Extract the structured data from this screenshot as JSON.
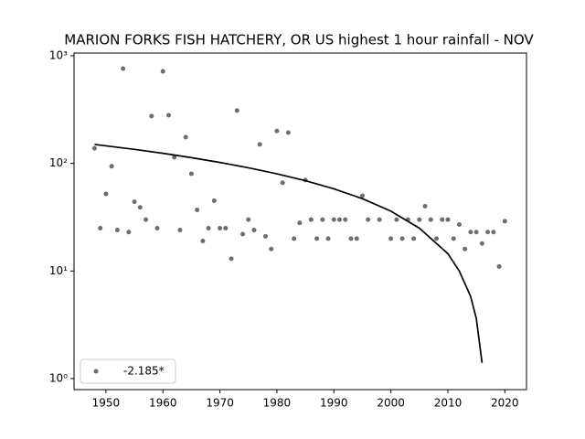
{
  "chart_data": {
    "type": "scatter",
    "title": "MARION FORKS FISH HATCHERY, OR US highest 1 hour rainfall - NOV",
    "log_y": true,
    "xlim": [
      1944.4,
      2023.8
    ],
    "ylim": [
      0.79,
      1060
    ],
    "xticks": [
      1950,
      1960,
      1970,
      1980,
      1990,
      2000,
      2010,
      2020
    ],
    "yticks": [
      {
        "value": 1,
        "label": "10⁰"
      },
      {
        "value": 10,
        "label": "10¹"
      },
      {
        "value": 100,
        "label": "10²"
      },
      {
        "value": 1000,
        "label": "10³"
      }
    ],
    "legend": "lower left",
    "series": [
      {
        "name": "-2.185*",
        "type": "scatter",
        "color": "#555555",
        "x": [
          1948,
          1949,
          1950,
          1951,
          1952,
          1953,
          1954,
          1955,
          1956,
          1957,
          1958,
          1959,
          1960,
          1961,
          1962,
          1963,
          1964,
          1965,
          1966,
          1967,
          1968,
          1969,
          1970,
          1971,
          1972,
          1973,
          1974,
          1975,
          1976,
          1977,
          1978,
          1979,
          1980,
          1981,
          1982,
          1983,
          1984,
          1985,
          1986,
          1987,
          1988,
          1989,
          1990,
          1991,
          1992,
          1993,
          1994,
          1995,
          1996,
          1998,
          2000,
          2001,
          2002,
          2003,
          2004,
          2005,
          2006,
          2007,
          2008,
          2009,
          2010,
          2011,
          2012,
          2013,
          2014,
          2015,
          2016,
          2017,
          2018,
          2019,
          2020
        ],
        "values": [
          138,
          25,
          52,
          94,
          24,
          760,
          23,
          44,
          39,
          30,
          275,
          25,
          716,
          280,
          114,
          24,
          175,
          80,
          37,
          19,
          25,
          45,
          25,
          25,
          13,
          310,
          22,
          30,
          24,
          150,
          21,
          16,
          200,
          66,
          193,
          20,
          28,
          70,
          30,
          20,
          30,
          20,
          30,
          30,
          30,
          20,
          20,
          50,
          30,
          30,
          20,
          30,
          20,
          30,
          20,
          30,
          40,
          30,
          20,
          30,
          30,
          20,
          27,
          16,
          23,
          23,
          18,
          23,
          23,
          11,
          29
        ]
      },
      {
        "type": "line",
        "color": "#000000",
        "x": [
          1948,
          1955,
          1960,
          1965,
          1970,
          1975,
          1980,
          1985,
          1990,
          1995,
          2000,
          2005,
          2010,
          2012,
          2014,
          2015,
          2016
        ],
        "values": [
          150,
          135,
          124,
          113,
          102,
          91,
          80,
          69,
          58,
          47,
          36,
          25,
          14.5,
          10,
          5.8,
          3.6,
          1.4
        ]
      }
    ]
  }
}
